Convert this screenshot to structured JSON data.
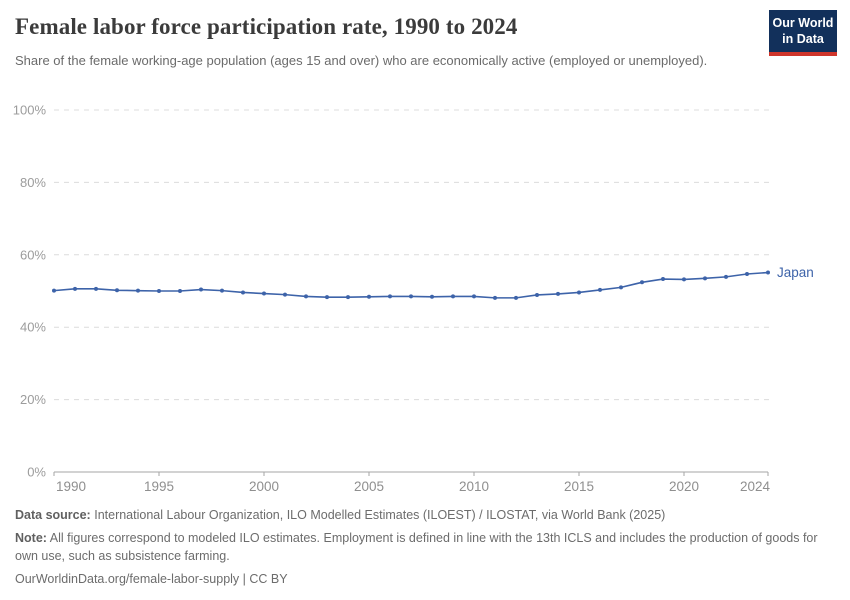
{
  "header": {
    "title": "Female labor force participation rate, 1990 to 2024",
    "subtitle": "Share of the female working-age population (ages 15 and over) who are economically active (employed or unemployed).",
    "logo": {
      "line1": "Our World",
      "line2": "in Data",
      "bg_color": "#12305b",
      "accent_color": "#cf352b"
    }
  },
  "chart_data": {
    "type": "line",
    "title": "Female labor force participation rate, 1990 to 2024",
    "x_years": [
      1990,
      1991,
      1992,
      1993,
      1994,
      1995,
      1996,
      1997,
      1998,
      1999,
      2000,
      2001,
      2002,
      2003,
      2004,
      2005,
      2006,
      2007,
      2008,
      2009,
      2010,
      2011,
      2012,
      2013,
      2014,
      2015,
      2016,
      2017,
      2018,
      2019,
      2020,
      2021,
      2022,
      2023,
      2024
    ],
    "series": [
      {
        "name": "Japan",
        "color": "#3d63a9",
        "values": [
          50.1,
          50.6,
          50.6,
          50.2,
          50.1,
          50.0,
          50.0,
          50.4,
          50.1,
          49.6,
          49.3,
          49.0,
          48.5,
          48.3,
          48.3,
          48.4,
          48.5,
          48.5,
          48.4,
          48.5,
          48.5,
          48.1,
          48.1,
          48.9,
          49.2,
          49.6,
          50.3,
          51.0,
          52.4,
          53.3,
          53.2,
          53.5,
          53.9,
          54.7,
          55.1
        ]
      }
    ],
    "xlim": [
      1990,
      2024
    ],
    "ylim": [
      0,
      100
    ],
    "x_ticks": [
      {
        "v": 1990,
        "label": "1990"
      },
      {
        "v": 1995,
        "label": "1995"
      },
      {
        "v": 2000,
        "label": "2000"
      },
      {
        "v": 2005,
        "label": "2005"
      },
      {
        "v": 2010,
        "label": "2010"
      },
      {
        "v": 2015,
        "label": "2015"
      },
      {
        "v": 2020,
        "label": "2020"
      },
      {
        "v": 2024,
        "label": "2024"
      }
    ],
    "y_ticks": [
      {
        "v": 0,
        "label": "0%"
      },
      {
        "v": 20,
        "label": "20%"
      },
      {
        "v": 40,
        "label": "40%"
      },
      {
        "v": 60,
        "label": "60%"
      },
      {
        "v": 80,
        "label": "80%"
      },
      {
        "v": 100,
        "label": "100%"
      }
    ],
    "grid": "horizontal-dashed",
    "legend_position": "end-of-line-label",
    "colors": {
      "gridline": "#dcdcdc",
      "axis": "#a6a6a6",
      "y_tick_label": "#9c9c9c",
      "x_tick_label": "#8f8f8f"
    }
  },
  "footer": {
    "data_source_label": "Data source:",
    "data_source": "International Labour Organization, ILO Modelled Estimates (ILOEST) / ILOSTAT, via World Bank (2025)",
    "note_label": "Note:",
    "note": "All figures correspond to modeled ILO estimates. Employment is defined in line with the 13th ICLS and includes the production of goods for own use, such as subsistence farming.",
    "url": "OurWorldinData.org/female-labor-supply",
    "separator": " | ",
    "license": "CC BY"
  }
}
